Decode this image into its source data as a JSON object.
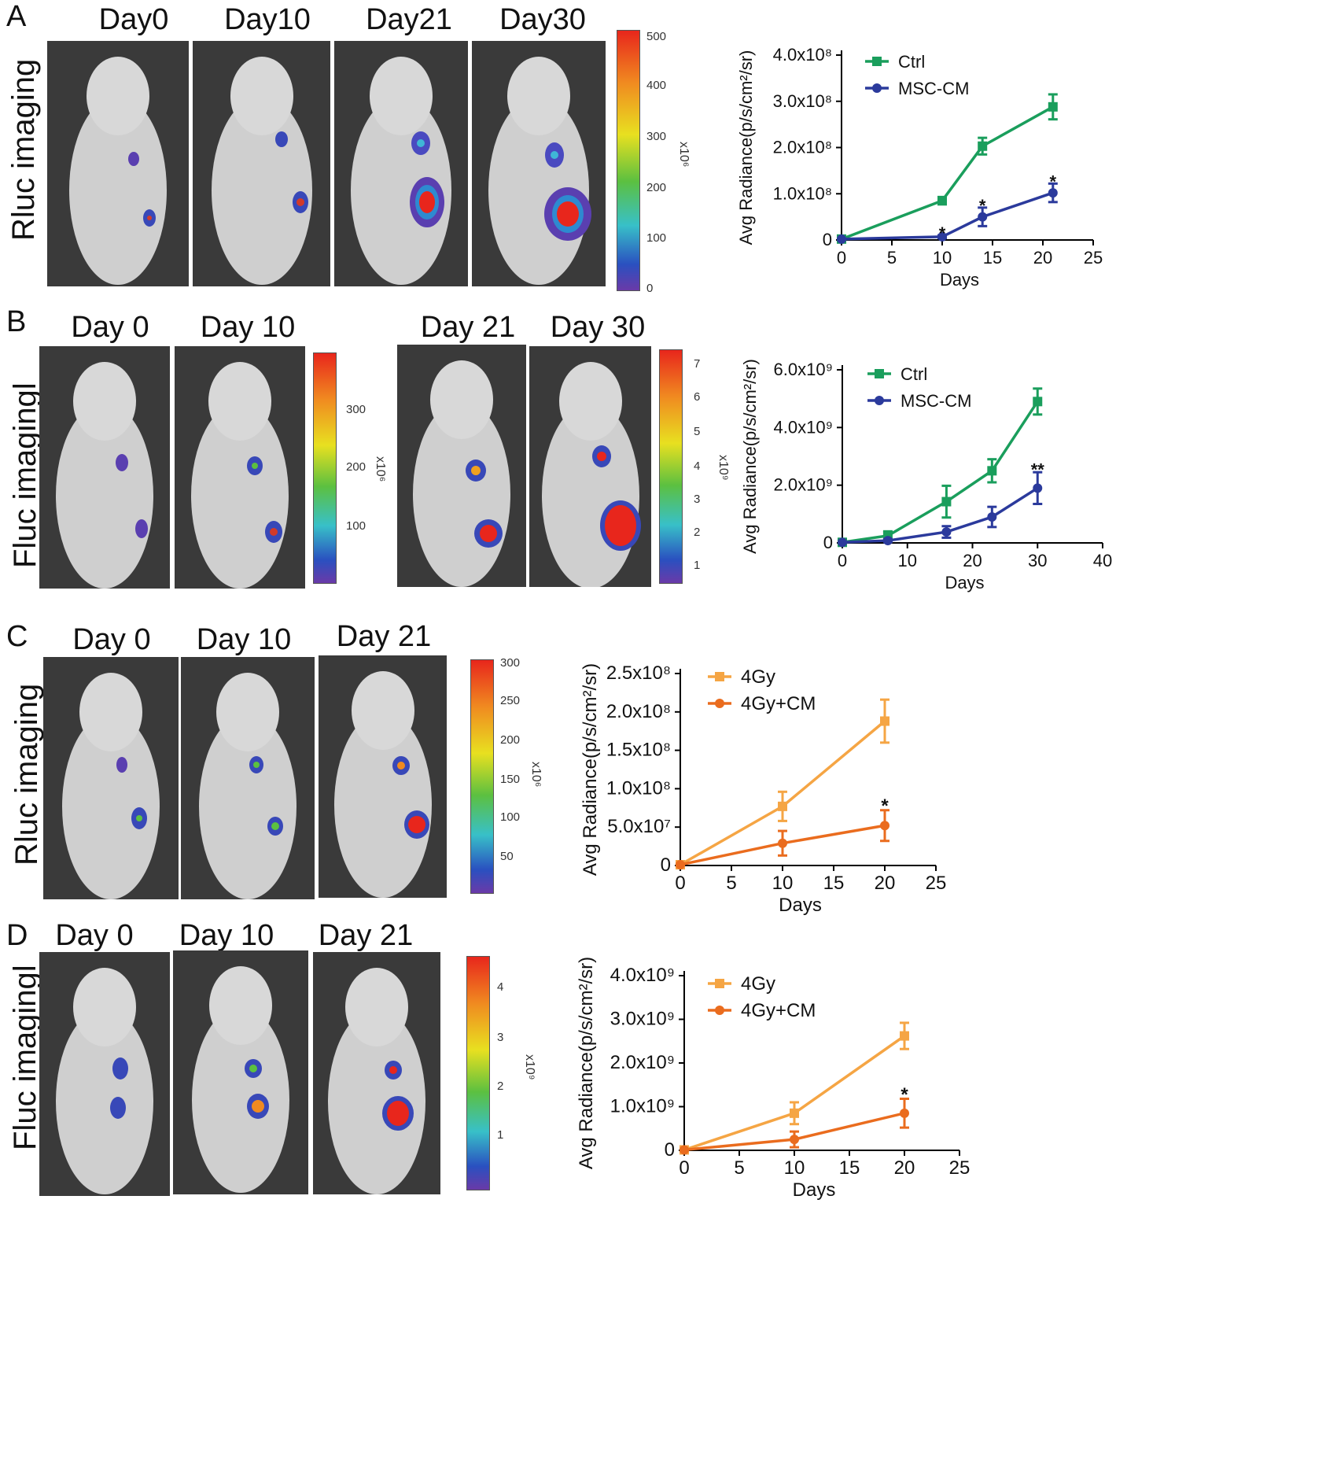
{
  "rows": [
    {
      "letter": "A",
      "modality": "Rluc imaging",
      "days": [
        "Day0",
        "Day10",
        "Day21",
        "Day30"
      ],
      "scale": {
        "ticks": [
          "500",
          "400",
          "300",
          "200",
          "100",
          "0"
        ],
        "unit": "x10⁶"
      }
    },
    {
      "letter": "B",
      "modality": "Fluc imagingl",
      "days": [
        "Day 0",
        "Day 10",
        "Day 21",
        "Day 30"
      ],
      "scale": {
        "ticks": [
          "300",
          "200",
          "100"
        ],
        "unit": "x10⁶"
      },
      "scale2": {
        "ticks": [
          "7",
          "6",
          "5",
          "4",
          "3",
          "2",
          "1"
        ],
        "unit": "x10⁹"
      }
    },
    {
      "letter": "C",
      "modality": "Rluc imaging",
      "days": [
        "Day 0",
        "Day 10",
        "Day 21"
      ],
      "scale": {
        "ticks": [
          "300",
          "250",
          "200",
          "150",
          "100",
          "50"
        ],
        "unit": "x10⁶"
      }
    },
    {
      "letter": "D",
      "modality": "Fluc imagingl",
      "days": [
        "Day 0",
        "Day 10",
        "Day 21"
      ],
      "scale": {
        "ticks": [
          "4",
          "3",
          "2",
          "1"
        ],
        "unit": "x10⁹"
      }
    }
  ],
  "chart_data": [
    {
      "panel": "A",
      "type": "line",
      "xlabel": "Days",
      "ylabel": "Avg Radiance(p/s/cm²/sr)",
      "xlim": [
        0,
        25
      ],
      "xticks": [
        "0",
        "5",
        "10",
        "15",
        "20",
        "25"
      ],
      "ylim": [
        0,
        400000000
      ],
      "yticks": [
        {
          "value": 0,
          "label": "0"
        },
        {
          "value": 100000000,
          "label": "1.0x10⁸"
        },
        {
          "value": 200000000,
          "label": "2.0x10⁸"
        },
        {
          "value": 300000000,
          "label": "3.0x10⁸"
        },
        {
          "value": 400000000,
          "label": "4.0x10⁸"
        }
      ],
      "series": [
        {
          "name": "Ctrl",
          "color": "#1a9e5c",
          "marker": "square",
          "x": [
            0,
            10,
            14,
            21
          ],
          "y": [
            2000000,
            85000000,
            203000000,
            288000000
          ],
          "err": [
            0,
            8000000,
            18000000,
            27000000
          ]
        },
        {
          "name": "MSC-CM",
          "color": "#2b3a9c",
          "marker": "circle",
          "x": [
            0,
            10,
            14,
            21
          ],
          "y": [
            2000000,
            7000000,
            50000000,
            102000000
          ],
          "err": [
            0,
            3000000,
            20000000,
            20000000
          ]
        }
      ],
      "annotations": [
        {
          "x": 10,
          "y": 15000000,
          "text": "*"
        },
        {
          "x": 14,
          "y": 75000000,
          "text": "*"
        },
        {
          "x": 21,
          "y": 127000000,
          "text": "*"
        }
      ]
    },
    {
      "panel": "B",
      "type": "line",
      "xlabel": "Days",
      "ylabel": "Avg Radiance(p/s/cm²/sr)",
      "xlim": [
        0,
        40
      ],
      "xticks": [
        "0",
        "10",
        "20",
        "30",
        "40"
      ],
      "ylim": [
        0,
        6000000000
      ],
      "yticks": [
        {
          "value": 0,
          "label": "0"
        },
        {
          "value": 2000000000,
          "label": "2.0x10⁹"
        },
        {
          "value": 4000000000,
          "label": "4.0x10⁹"
        },
        {
          "value": 6000000000,
          "label": "6.0x10⁹"
        }
      ],
      "series": [
        {
          "name": "Ctrl",
          "color": "#1a9e5c",
          "marker": "square",
          "x": [
            0,
            7,
            16,
            23,
            30
          ],
          "y": [
            20000000,
            250000000,
            1430000000,
            2500000000,
            4900000000
          ],
          "err": [
            0,
            150000000,
            550000000,
            400000000,
            450000000
          ]
        },
        {
          "name": "MSC-CM",
          "color": "#2b3a9c",
          "marker": "circle",
          "x": [
            0,
            7,
            16,
            23,
            30
          ],
          "y": [
            20000000,
            80000000,
            380000000,
            900000000,
            1900000000
          ],
          "err": [
            0,
            50000000,
            200000000,
            350000000,
            550000000
          ]
        }
      ],
      "annotations": [
        {
          "x": 30,
          "y": 2550000000,
          "text": "**"
        }
      ]
    },
    {
      "panel": "C",
      "type": "line",
      "xlabel": "Days",
      "ylabel": "Avg Radiance(p/s/cm²/sr)",
      "xlim": [
        0,
        25
      ],
      "xticks": [
        "0",
        "5",
        "10",
        "15",
        "20",
        "25"
      ],
      "ylim": [
        0,
        250000000
      ],
      "yticks": [
        {
          "value": 0,
          "label": "0"
        },
        {
          "value": 50000000,
          "label": "5.0x10⁷"
        },
        {
          "value": 100000000,
          "label": "1.0x10⁸"
        },
        {
          "value": 150000000,
          "label": "1.5x10⁸"
        },
        {
          "value": 200000000,
          "label": "2.0x10⁸"
        },
        {
          "value": 250000000,
          "label": "2.5x10⁸"
        }
      ],
      "series": [
        {
          "name": "4Gy",
          "color": "#f5a544",
          "marker": "square",
          "x": [
            0,
            10,
            20
          ],
          "y": [
            1000000,
            77000000,
            188000000
          ],
          "err": [
            0,
            19000000,
            28000000
          ]
        },
        {
          "name": "4Gy+CM",
          "color": "#ea6c1e",
          "marker": "circle",
          "x": [
            0,
            10,
            20
          ],
          "y": [
            1000000,
            29000000,
            52000000
          ],
          "err": [
            0,
            16000000,
            20000000
          ]
        }
      ],
      "annotations": [
        {
          "x": 20,
          "y": 78000000,
          "text": "*"
        }
      ]
    },
    {
      "panel": "D",
      "type": "line",
      "xlabel": "Days",
      "ylabel": "Avg Radiance(p/s/cm²/sr)",
      "xlim": [
        0,
        25
      ],
      "xticks": [
        "0",
        "5",
        "10",
        "15",
        "20",
        "25"
      ],
      "ylim": [
        0,
        4000000000
      ],
      "yticks": [
        {
          "value": 0,
          "label": "0"
        },
        {
          "value": 1000000000,
          "label": "1.0x10⁹"
        },
        {
          "value": 2000000000,
          "label": "2.0x10⁹"
        },
        {
          "value": 3000000000,
          "label": "3.0x10⁹"
        },
        {
          "value": 4000000000,
          "label": "4.0x10⁹"
        }
      ],
      "series": [
        {
          "name": "4Gy",
          "color": "#f5a544",
          "marker": "square",
          "x": [
            0,
            10,
            20
          ],
          "y": [
            10000000,
            850000000,
            2620000000
          ],
          "err": [
            0,
            250000000,
            300000000
          ]
        },
        {
          "name": "4Gy+CM",
          "color": "#ea6c1e",
          "marker": "circle",
          "x": [
            0,
            10,
            20
          ],
          "y": [
            10000000,
            250000000,
            850000000
          ],
          "err": [
            0,
            180000000,
            330000000
          ]
        }
      ],
      "annotations": [
        {
          "x": 20,
          "y": 1280000000,
          "text": "*"
        }
      ]
    }
  ]
}
